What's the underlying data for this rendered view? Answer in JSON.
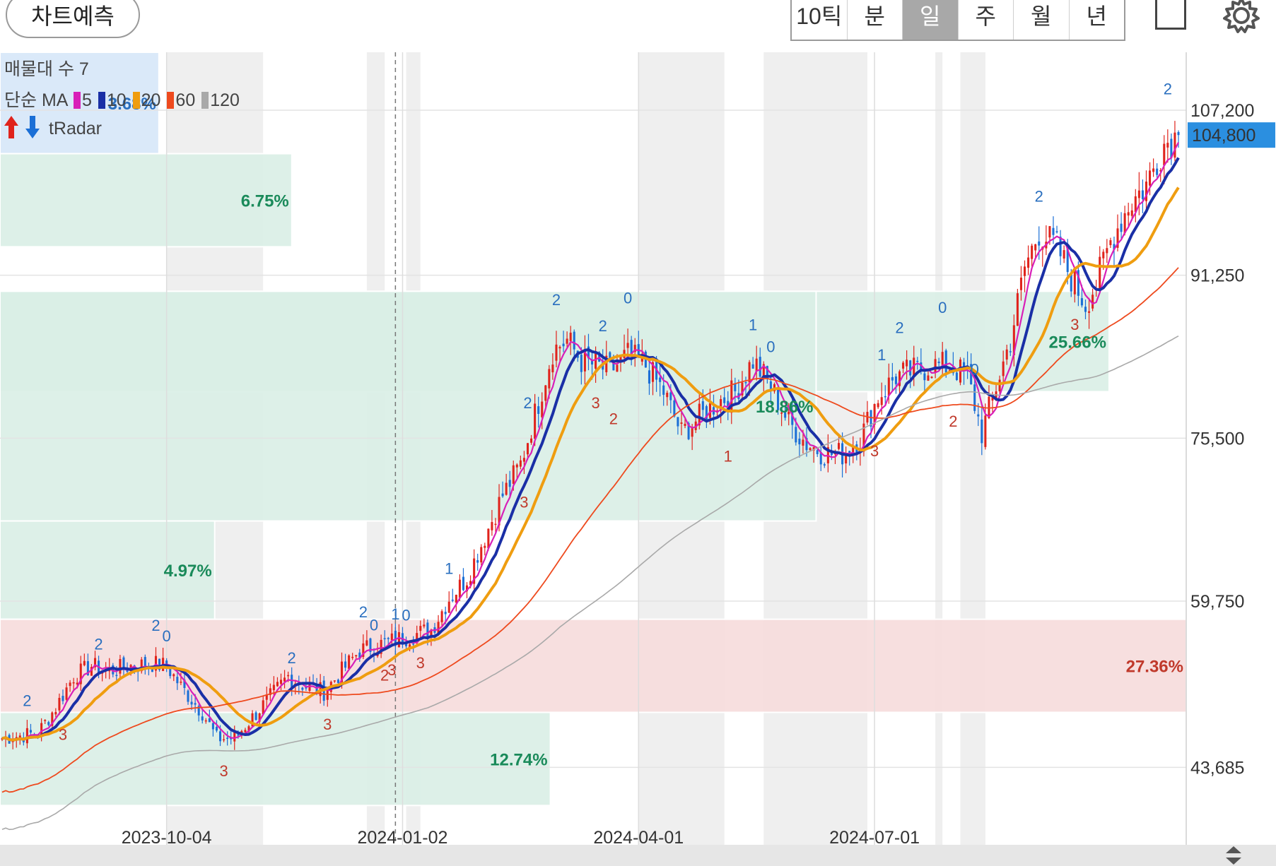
{
  "header": {
    "predict_label": "차트예측",
    "periods": [
      "10틱",
      "분",
      "일",
      "주",
      "월",
      "년"
    ],
    "active_period": "일"
  },
  "legend": {
    "volume_profile": "매물대 수 7",
    "ma_prefix": "단순 MA",
    "ma_items": [
      {
        "label": "5",
        "color": "#d81fb8"
      },
      {
        "label": "10",
        "color": "#1a2fa6"
      },
      {
        "label": "20",
        "color": "#ef9d10"
      },
      {
        "label": "60",
        "color": "#ee4a1e"
      },
      {
        "label": "120",
        "color": "#a9a9a9"
      }
    ],
    "radar_label": "tRadar"
  },
  "current_price": "104,800",
  "chart_data": {
    "type": "candlestick",
    "title": "",
    "y_ticks": [
      107200,
      91250,
      75500,
      59750,
      43685
    ],
    "y_tick_labels": [
      "107,200",
      "91,250",
      "75,500",
      "59,750",
      "43,685"
    ],
    "ylim": [
      36200,
      112800
    ],
    "x_tick_labels": [
      "2023-10-04",
      "2024-01-02",
      "2024-04-01",
      "2024-07-01"
    ],
    "x_tick_index": [
      46,
      112,
      178,
      244
    ],
    "num_bars": 330,
    "last_price": 104800,
    "volume_profile": [
      {
        "low": 103000,
        "high": 112800,
        "pct": "3.68%",
        "extent": 0.134
      },
      {
        "low": 94000,
        "high": 103000,
        "pct": "6.75%",
        "extent": 0.246
      },
      {
        "low": 67500,
        "high": 89700,
        "pct": "18.86%",
        "extent": 0.688
      },
      {
        "low": 80000,
        "high": 89700,
        "pct": "25.66%",
        "extent": 0.935
      },
      {
        "low": 58000,
        "high": 67500,
        "pct": "4.97%",
        "extent": 0.181
      },
      {
        "low": 49000,
        "high": 58000,
        "pct": "27.36%",
        "extent": 1.0
      },
      {
        "low": 40000,
        "high": 49000,
        "pct": "12.74%",
        "extent": 0.464
      }
    ],
    "price_path": [
      [
        0,
        46500
      ],
      [
        10,
        47000
      ],
      [
        15,
        49500
      ],
      [
        20,
        52500
      ],
      [
        25,
        53500
      ],
      [
        30,
        53000
      ],
      [
        36,
        53500
      ],
      [
        42,
        53700
      ],
      [
        46,
        53500
      ],
      [
        50,
        51500
      ],
      [
        56,
        49000
      ],
      [
        60,
        46500
      ],
      [
        65,
        46500
      ],
      [
        70,
        48500
      ],
      [
        75,
        50500
      ],
      [
        80,
        52500
      ],
      [
        85,
        51500
      ],
      [
        90,
        51000
      ],
      [
        95,
        53000
      ],
      [
        100,
        55000
      ],
      [
        105,
        55500
      ],
      [
        110,
        56000
      ],
      [
        115,
        56500
      ],
      [
        120,
        57000
      ],
      [
        125,
        60000
      ],
      [
        130,
        62000
      ],
      [
        135,
        66000
      ],
      [
        140,
        70000
      ],
      [
        145,
        73000
      ],
      [
        150,
        79000
      ],
      [
        154,
        84000
      ],
      [
        158,
        85000
      ],
      [
        162,
        83000
      ],
      [
        166,
        82500
      ],
      [
        170,
        82000
      ],
      [
        175,
        83500
      ],
      [
        180,
        82500
      ],
      [
        185,
        80000
      ],
      [
        190,
        76000
      ],
      [
        195,
        77500
      ],
      [
        200,
        79000
      ],
      [
        205,
        80000
      ],
      [
        210,
        83000
      ],
      [
        215,
        80500
      ],
      [
        220,
        77000
      ],
      [
        225,
        75000
      ],
      [
        230,
        74000
      ],
      [
        235,
        74000
      ],
      [
        240,
        75500
      ],
      [
        245,
        79500
      ],
      [
        250,
        81500
      ],
      [
        255,
        82000
      ],
      [
        260,
        82500
      ],
      [
        265,
        82500
      ],
      [
        270,
        81500
      ],
      [
        274,
        76000
      ],
      [
        278,
        80500
      ],
      [
        282,
        85000
      ],
      [
        286,
        92000
      ],
      [
        290,
        95500
      ],
      [
        295,
        94000
      ],
      [
        299,
        91000
      ],
      [
        303,
        88500
      ],
      [
        306,
        90500
      ],
      [
        310,
        94500
      ],
      [
        315,
        98000
      ],
      [
        320,
        100000
      ],
      [
        325,
        104000
      ],
      [
        329,
        104800
      ]
    ],
    "wave_markers": [
      {
        "i": 7,
        "label": "2",
        "type": "peak"
      },
      {
        "i": 17,
        "label": "3",
        "type": "trough"
      },
      {
        "i": 27,
        "label": "2",
        "type": "peak"
      },
      {
        "i": 43,
        "label": "2",
        "type": "peak"
      },
      {
        "i": 46,
        "label": "0",
        "type": "peak"
      },
      {
        "i": 62,
        "label": "3",
        "type": "trough"
      },
      {
        "i": 81,
        "label": "2",
        "type": "peak"
      },
      {
        "i": 91,
        "label": "3",
        "type": "trough"
      },
      {
        "i": 101,
        "label": "2",
        "type": "peak"
      },
      {
        "i": 104,
        "label": "0",
        "type": "peak"
      },
      {
        "i": 107,
        "label": "2",
        "type": "trough"
      },
      {
        "i": 109,
        "label": "3",
        "type": "trough"
      },
      {
        "i": 110,
        "label": "1",
        "type": "peak"
      },
      {
        "i": 113,
        "label": "0",
        "type": "peak"
      },
      {
        "i": 117,
        "label": "3",
        "type": "trough"
      },
      {
        "i": 125,
        "label": "1",
        "type": "peak"
      },
      {
        "i": 146,
        "label": "3",
        "type": "trough"
      },
      {
        "i": 147,
        "label": "2",
        "type": "peak"
      },
      {
        "i": 155,
        "label": "2",
        "type": "peak"
      },
      {
        "i": 166,
        "label": "3",
        "type": "trough"
      },
      {
        "i": 168,
        "label": "2",
        "type": "peak"
      },
      {
        "i": 171,
        "label": "2",
        "type": "trough"
      },
      {
        "i": 175,
        "label": "0",
        "type": "peak"
      },
      {
        "i": 203,
        "label": "1",
        "type": "trough"
      },
      {
        "i": 210,
        "label": "1",
        "type": "peak"
      },
      {
        "i": 215,
        "label": "0",
        "type": "peak"
      },
      {
        "i": 244,
        "label": "3",
        "type": "trough"
      },
      {
        "i": 246,
        "label": "1",
        "type": "peak"
      },
      {
        "i": 251,
        "label": "2",
        "type": "peak"
      },
      {
        "i": 263,
        "label": "0",
        "type": "peak"
      },
      {
        "i": 266,
        "label": "2",
        "type": "trough"
      },
      {
        "i": 272,
        "label": "0",
        "type": "peak"
      },
      {
        "i": 290,
        "label": "2",
        "type": "peak"
      },
      {
        "i": 300,
        "label": "3",
        "type": "trough"
      },
      {
        "i": 326,
        "label": "2",
        "type": "peak"
      }
    ],
    "shaded_ranges": [
      [
        46,
        73
      ],
      [
        102,
        107
      ],
      [
        113,
        117
      ],
      [
        178,
        202
      ],
      [
        213,
        242
      ],
      [
        261,
        263
      ],
      [
        268,
        275
      ]
    ],
    "vertical_marker_index": 110
  }
}
